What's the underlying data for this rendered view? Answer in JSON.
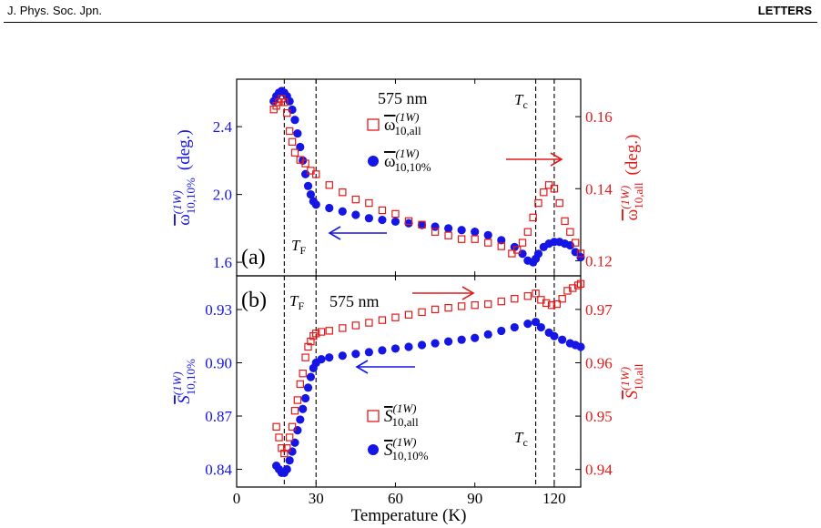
{
  "header": {
    "journal": "J. Phys. Soc. Jpn.",
    "section": "LETTERS"
  },
  "colors": {
    "blue": "#1515e6",
    "red": "#e21a1a",
    "axis": "#000000"
  },
  "chart_data": [
    {
      "panel": "(a)",
      "type": "scatter",
      "xlabel": "",
      "xlim": [
        0,
        130
      ],
      "annotations": {
        "panel_label": "(a)",
        "wavelength": "575 nm",
        "tf": "T",
        "tf_sub": "F",
        "tc": "T",
        "tc_sub": "c",
        "tf_x": 18,
        "tf2_x": 30,
        "tc_x": 113,
        "tc2_x": 120
      },
      "left_axis": {
        "label_main": "ω",
        "label_sup": "(1W)",
        "label_sub": "10,10%",
        "label_unit": "(deg.)",
        "color": "#1515e6",
        "ylim": [
          1.52,
          2.68
        ],
        "ticks": [
          1.6,
          2.0,
          2.4
        ],
        "tick_labels": [
          "1.6",
          "2.0",
          "2.4"
        ]
      },
      "right_axis": {
        "label_main": "ω",
        "label_sup": "(1W)",
        "label_sub": "10,all",
        "label_unit": "(deg.)",
        "color": "#e21a1a",
        "ylim": [
          0.1158,
          0.1704
        ],
        "ticks": [
          0.12,
          0.14,
          0.16
        ],
        "tick_labels": [
          "0.12",
          "0.14",
          "0.16"
        ]
      },
      "legend": [
        {
          "main": "ω",
          "sup": "(1W)",
          "sub": "10,all",
          "marker": "open-square",
          "color": "#e21a1a"
        },
        {
          "main": "ω",
          "sup": "(1W)",
          "sub": "10,10%",
          "marker": "filled-circle",
          "color": "#1515e6"
        }
      ],
      "series": [
        {
          "name": "ω̄(1W) 10,10%",
          "axis": "left",
          "marker": "filled-circle",
          "color": "#1515e6",
          "points": [
            [
              14,
              2.55
            ],
            [
              15,
              2.58
            ],
            [
              16,
              2.6
            ],
            [
              17,
              2.61
            ],
            [
              18,
              2.6
            ],
            [
              19,
              2.58
            ],
            [
              20,
              2.55
            ],
            [
              21,
              2.5
            ],
            [
              22,
              2.44
            ],
            [
              23,
              2.36
            ],
            [
              24,
              2.28
            ],
            [
              25,
              2.2
            ],
            [
              26,
              2.12
            ],
            [
              27,
              2.05
            ],
            [
              28,
              2.0
            ],
            [
              29,
              1.96
            ],
            [
              30,
              1.94
            ],
            [
              35,
              1.92
            ],
            [
              40,
              1.9
            ],
            [
              45,
              1.88
            ],
            [
              50,
              1.86
            ],
            [
              55,
              1.85
            ],
            [
              60,
              1.84
            ],
            [
              65,
              1.83
            ],
            [
              70,
              1.82
            ],
            [
              75,
              1.81
            ],
            [
              80,
              1.8
            ],
            [
              85,
              1.79
            ],
            [
              90,
              1.78
            ],
            [
              95,
              1.76
            ],
            [
              100,
              1.73
            ],
            [
              105,
              1.69
            ],
            [
              108,
              1.65
            ],
            [
              110,
              1.61
            ],
            [
              112,
              1.6
            ],
            [
              113,
              1.62
            ],
            [
              114,
              1.65
            ],
            [
              116,
              1.69
            ],
            [
              118,
              1.71
            ],
            [
              120,
              1.72
            ],
            [
              122,
              1.72
            ],
            [
              124,
              1.71
            ],
            [
              126,
              1.7
            ],
            [
              128,
              1.66
            ],
            [
              130,
              1.63
            ]
          ]
        },
        {
          "name": "ω̄(1W) 10,all",
          "axis": "right",
          "marker": "open-square",
          "color": "#e21a1a",
          "points": [
            [
              14,
              0.162
            ],
            [
              15,
              0.163
            ],
            [
              16,
              0.164
            ],
            [
              17,
              0.165
            ],
            [
              18,
              0.164
            ],
            [
              19,
              0.161
            ],
            [
              20,
              0.156
            ],
            [
              21,
              0.153
            ],
            [
              22,
              0.15
            ],
            [
              24,
              0.148
            ],
            [
              26,
              0.147
            ],
            [
              28,
              0.145
            ],
            [
              30,
              0.144
            ],
            [
              35,
              0.141
            ],
            [
              40,
              0.139
            ],
            [
              45,
              0.137
            ],
            [
              50,
              0.136
            ],
            [
              55,
              0.134
            ],
            [
              60,
              0.133
            ],
            [
              65,
              0.131
            ],
            [
              70,
              0.13
            ],
            [
              75,
              0.128
            ],
            [
              80,
              0.127
            ],
            [
              85,
              0.126
            ],
            [
              90,
              0.126
            ],
            [
              95,
              0.125
            ],
            [
              100,
              0.124
            ],
            [
              104,
              0.122
            ],
            [
              106,
              0.123
            ],
            [
              108,
              0.125
            ],
            [
              110,
              0.128
            ],
            [
              112,
              0.132
            ],
            [
              114,
              0.136
            ],
            [
              116,
              0.139
            ],
            [
              118,
              0.141
            ],
            [
              120,
              0.14
            ],
            [
              122,
              0.136
            ],
            [
              124,
              0.131
            ],
            [
              126,
              0.128
            ],
            [
              128,
              0.125
            ],
            [
              130,
              0.122
            ]
          ]
        }
      ]
    },
    {
      "panel": "(b)",
      "type": "scatter",
      "xlabel": "Temperature (K)",
      "xlim": [
        0,
        130
      ],
      "x_ticks": [
        0,
        30,
        60,
        90,
        120
      ],
      "x_tick_labels": [
        "0",
        "30",
        "60",
        "90",
        "120"
      ],
      "annotations": {
        "panel_label": "(b)",
        "wavelength": "575 nm",
        "tf": "T",
        "tf_sub": "F",
        "tc": "T",
        "tc_sub": "c",
        "tf_x": 18,
        "tf2_x": 30,
        "tc_x": 113,
        "tc2_x": 120
      },
      "left_axis": {
        "label_main": "S",
        "label_sup": "(1W)",
        "label_sub": "10,10%",
        "color": "#1515e6",
        "ylim": [
          0.83,
          0.949
        ],
        "ticks": [
          0.84,
          0.87,
          0.9,
          0.93
        ],
        "tick_labels": [
          "0.84",
          "0.87",
          "0.90",
          "0.93"
        ]
      },
      "right_axis": {
        "label_main": "S",
        "label_sup": "(1W)",
        "label_sub": "10,all",
        "color": "#e21a1a",
        "ylim": [
          0.9367,
          0.9763
        ],
        "ticks": [
          0.94,
          0.95,
          0.96,
          0.97
        ],
        "tick_labels": [
          "0.94",
          "0.95",
          "0.96",
          "0.97"
        ]
      },
      "legend": [
        {
          "main": "S",
          "sup": "(1W)",
          "sub": "10,all",
          "marker": "open-square",
          "color": "#e21a1a"
        },
        {
          "main": "S",
          "sup": "(1W)",
          "sub": "10,10%",
          "marker": "filled-circle",
          "color": "#1515e6"
        }
      ],
      "series": [
        {
          "name": "S̄(1W) 10,10%",
          "axis": "left",
          "marker": "filled-circle",
          "color": "#1515e6",
          "points": [
            [
              15,
              0.842
            ],
            [
              16,
              0.84
            ],
            [
              17,
              0.838
            ],
            [
              18,
              0.838
            ],
            [
              19,
              0.84
            ],
            [
              20,
              0.845
            ],
            [
              21,
              0.85
            ],
            [
              22,
              0.855
            ],
            [
              23,
              0.862
            ],
            [
              24,
              0.868
            ],
            [
              25,
              0.874
            ],
            [
              26,
              0.88
            ],
            [
              27,
              0.886
            ],
            [
              28,
              0.892
            ],
            [
              29,
              0.897
            ],
            [
              30,
              0.9
            ],
            [
              32,
              0.902
            ],
            [
              35,
              0.903
            ],
            [
              40,
              0.904
            ],
            [
              45,
              0.905
            ],
            [
              50,
              0.906
            ],
            [
              55,
              0.907
            ],
            [
              60,
              0.908
            ],
            [
              65,
              0.909
            ],
            [
              70,
              0.91
            ],
            [
              75,
              0.911
            ],
            [
              80,
              0.912
            ],
            [
              85,
              0.913
            ],
            [
              90,
              0.914
            ],
            [
              95,
              0.916
            ],
            [
              100,
              0.918
            ],
            [
              105,
              0.92
            ],
            [
              110,
              0.922
            ],
            [
              113,
              0.923
            ],
            [
              115,
              0.92
            ],
            [
              118,
              0.917
            ],
            [
              120,
              0.915
            ],
            [
              123,
              0.913
            ],
            [
              126,
              0.911
            ],
            [
              128,
              0.91
            ],
            [
              130,
              0.909
            ]
          ]
        },
        {
          "name": "S̄(1W) 10,all",
          "axis": "right",
          "marker": "open-square",
          "color": "#e21a1a",
          "points": [
            [
              15,
              0.948
            ],
            [
              16,
              0.946
            ],
            [
              17,
              0.944
            ],
            [
              18,
              0.943
            ],
            [
              19,
              0.944
            ],
            [
              20,
              0.946
            ],
            [
              21,
              0.948
            ],
            [
              22,
              0.951
            ],
            [
              23,
              0.953
            ],
            [
              24,
              0.956
            ],
            [
              25,
              0.958
            ],
            [
              26,
              0.961
            ],
            [
              27,
              0.963
            ],
            [
              28,
              0.964
            ],
            [
              29,
              0.965
            ],
            [
              30,
              0.9655
            ],
            [
              32,
              0.9658
            ],
            [
              35,
              0.966
            ],
            [
              40,
              0.9665
            ],
            [
              45,
              0.967
            ],
            [
              50,
              0.9675
            ],
            [
              55,
              0.968
            ],
            [
              60,
              0.9685
            ],
            [
              65,
              0.969
            ],
            [
              70,
              0.9695
            ],
            [
              75,
              0.97
            ],
            [
              80,
              0.9703
            ],
            [
              85,
              0.9706
            ],
            [
              90,
              0.9708
            ],
            [
              95,
              0.971
            ],
            [
              100,
              0.9715
            ],
            [
              105,
              0.972
            ],
            [
              110,
              0.9725
            ],
            [
              113,
              0.973
            ],
            [
              115,
              0.9718
            ],
            [
              117,
              0.9712
            ],
            [
              119,
              0.9708
            ],
            [
              121,
              0.971
            ],
            [
              123,
              0.972
            ],
            [
              125,
              0.9735
            ],
            [
              127,
              0.974
            ],
            [
              129,
              0.9745
            ],
            [
              130,
              0.9748
            ]
          ]
        }
      ]
    }
  ]
}
